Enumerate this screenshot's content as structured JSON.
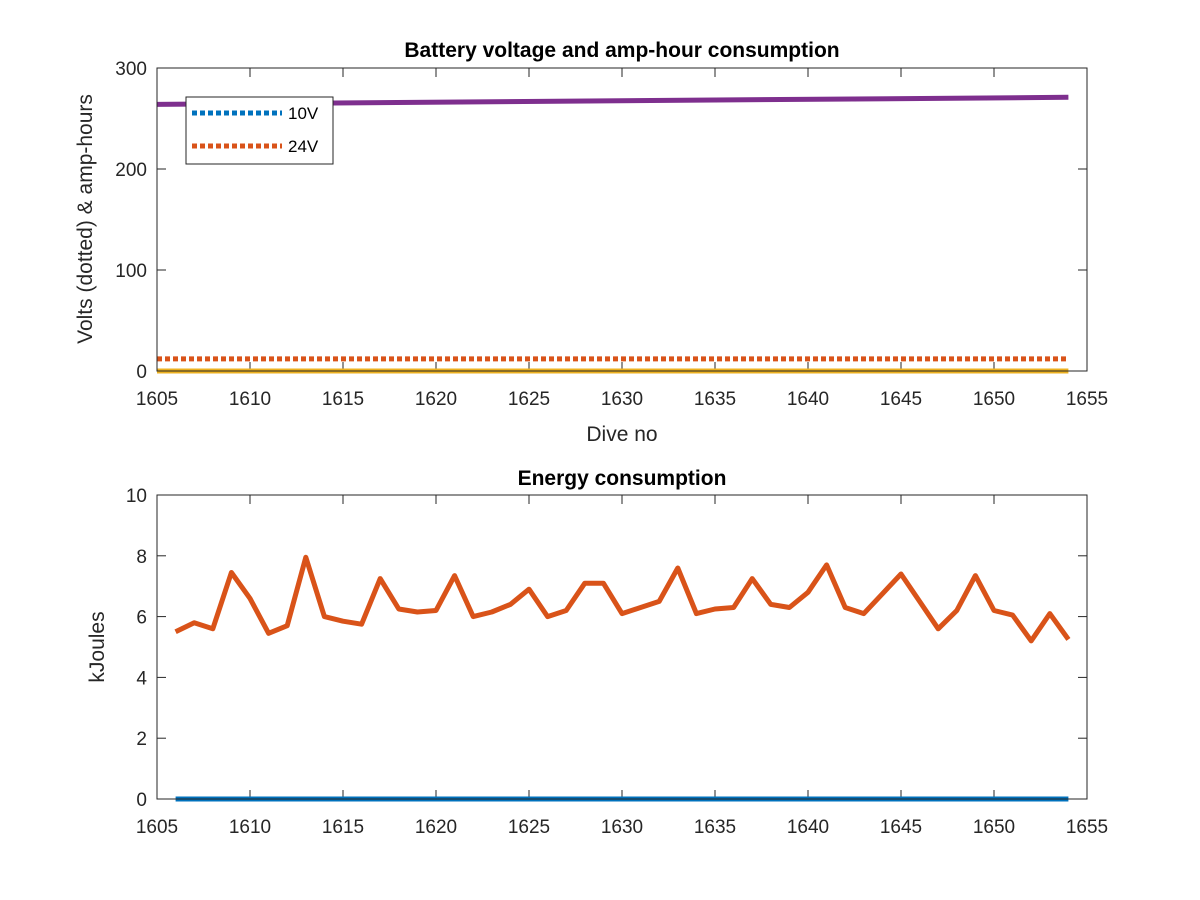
{
  "chart_data": [
    {
      "type": "line",
      "title": "Battery voltage and amp-hour consumption",
      "xlabel": "Dive no",
      "ylabel": "Volts (dotted) & amp-hours",
      "xlim": [
        1605,
        1655
      ],
      "ylim": [
        0,
        300
      ],
      "xticks": [
        1605,
        1610,
        1615,
        1620,
        1625,
        1630,
        1635,
        1640,
        1645,
        1650,
        1655
      ],
      "yticks": [
        0,
        100,
        200,
        300
      ],
      "legend_position": "top-left",
      "series": [
        {
          "name": "10V",
          "style": "dotted",
          "color": "#0072bd",
          "x": [
            1605,
            1654
          ],
          "y": [
            0,
            0
          ]
        },
        {
          "name": "24V",
          "style": "dotted",
          "color": "#d95319",
          "x": [
            1605,
            1654
          ],
          "y": [
            12,
            12
          ]
        },
        {
          "style": "solid",
          "color": "#edb120",
          "x": [
            1605,
            1654
          ],
          "y": [
            0,
            0
          ]
        },
        {
          "style": "solid",
          "color": "#7e2f8e",
          "x": [
            1605,
            1654
          ],
          "y": [
            264,
            271
          ]
        }
      ]
    },
    {
      "type": "line",
      "title": "Energy consumption",
      "xlabel": "",
      "ylabel": "kJoules",
      "xlim": [
        1605,
        1655
      ],
      "ylim": [
        0,
        10
      ],
      "xticks": [
        1605,
        1610,
        1615,
        1620,
        1625,
        1630,
        1635,
        1640,
        1645,
        1650,
        1655
      ],
      "yticks": [
        0,
        2,
        4,
        6,
        8,
        10
      ],
      "series": [
        {
          "style": "solid",
          "color": "#d95319",
          "x": [
            1606,
            1607,
            1608,
            1609,
            1610,
            1611,
            1612,
            1613,
            1614,
            1615,
            1616,
            1617,
            1618,
            1619,
            1620,
            1621,
            1622,
            1623,
            1624,
            1625,
            1626,
            1627,
            1628,
            1629,
            1630,
            1631,
            1632,
            1633,
            1634,
            1635,
            1636,
            1637,
            1638,
            1639,
            1640,
            1641,
            1642,
            1643,
            1644,
            1645,
            1646,
            1647,
            1648,
            1649,
            1650,
            1651,
            1652,
            1653,
            1654
          ],
          "y": [
            5.5,
            5.8,
            5.6,
            7.45,
            6.6,
            5.45,
            5.7,
            7.95,
            6.0,
            5.85,
            5.75,
            7.25,
            6.25,
            6.15,
            6.2,
            7.35,
            6.0,
            6.15,
            6.4,
            6.9,
            6.0,
            6.2,
            7.1,
            7.1,
            6.1,
            6.3,
            6.5,
            7.6,
            6.1,
            6.25,
            6.3,
            7.25,
            6.4,
            6.3,
            6.8,
            7.7,
            6.3,
            6.1,
            6.75,
            7.4,
            6.5,
            5.6,
            6.2,
            7.35,
            6.2,
            6.05,
            5.2,
            6.1,
            5.25
          ]
        },
        {
          "style": "solid",
          "color": "#0072bd",
          "x": [
            1606,
            1654
          ],
          "y": [
            0,
            0
          ]
        }
      ]
    }
  ]
}
